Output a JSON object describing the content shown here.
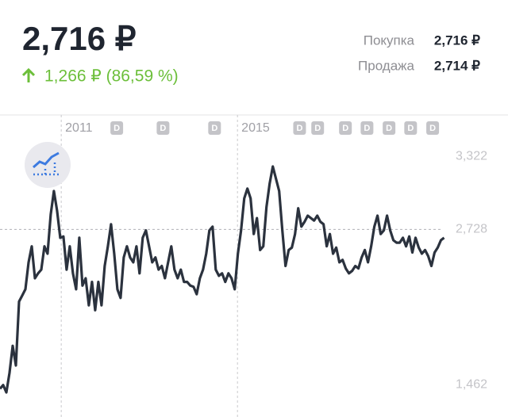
{
  "header": {
    "price": "2,716 ₽",
    "change": "1,266 ₽ (86,59 %)",
    "buy_label": "Покупка",
    "buy_value": "2,716 ₽",
    "sell_label": "Продажа",
    "sell_value": "2,714 ₽"
  },
  "chart_data": {
    "type": "line",
    "color": "#2b323e",
    "xlim": [
      2009.61,
      2021.14
    ],
    "xticks": [
      2011,
      2015
    ],
    "ylim": [
      1.2,
      3.66
    ],
    "yticks": [
      {
        "value": 3.322,
        "label": "3,322"
      },
      {
        "value": 2.728,
        "label": "2,728"
      },
      {
        "value": 1.462,
        "label": "1,462"
      }
    ],
    "dividend_label": "D",
    "dividends": [
      2012.26,
      2013.31,
      2014.48,
      2016.41,
      2016.82,
      2017.45,
      2017.94,
      2018.44,
      2018.93,
      2019.43
    ],
    "x": [
      2009.61,
      2009.682,
      2009.754,
      2009.826,
      2009.898,
      2009.97,
      2010.042,
      2010.114,
      2010.186,
      2010.258,
      2010.33,
      2010.402,
      2010.474,
      2010.546,
      2010.618,
      2010.69,
      2010.762,
      2010.834,
      2010.906,
      2010.978,
      2011.05,
      2011.122,
      2011.194,
      2011.266,
      2011.338,
      2011.41,
      2011.482,
      2011.554,
      2011.626,
      2011.698,
      2011.77,
      2011.842,
      2011.914,
      2011.986,
      2012.058,
      2012.13,
      2012.202,
      2012.274,
      2012.346,
      2012.418,
      2012.49,
      2012.562,
      2012.634,
      2012.706,
      2012.778,
      2012.85,
      2012.922,
      2012.994,
      2013.066,
      2013.138,
      2013.21,
      2013.282,
      2013.354,
      2013.426,
      2013.498,
      2013.57,
      2013.642,
      2013.714,
      2013.786,
      2013.858,
      2013.93,
      2014.002,
      2014.074,
      2014.146,
      2014.218,
      2014.29,
      2014.362,
      2014.434,
      2014.506,
      2014.578,
      2014.65,
      2014.722,
      2014.794,
      2014.866,
      2014.938,
      2015.01,
      2015.082,
      2015.154,
      2015.226,
      2015.298,
      2015.37,
      2015.442,
      2015.514,
      2015.586,
      2015.658,
      2015.73,
      2015.802,
      2015.874,
      2015.946,
      2016.018,
      2016.09,
      2016.162,
      2016.234,
      2016.306,
      2016.378,
      2016.45,
      2016.522,
      2016.594,
      2016.666,
      2016.738,
      2016.81,
      2016.882,
      2016.954,
      2017.026,
      2017.098,
      2017.17,
      2017.242,
      2017.314,
      2017.386,
      2017.458,
      2017.53,
      2017.602,
      2017.674,
      2017.746,
      2017.818,
      2017.89,
      2017.962,
      2018.034,
      2018.106,
      2018.178,
      2018.25,
      2018.322,
      2018.394,
      2018.466,
      2018.538,
      2018.61,
      2018.682,
      2018.754,
      2018.826,
      2018.898,
      2018.97,
      2019.042,
      2019.114,
      2019.186,
      2019.258,
      2019.33,
      2019.402,
      2019.474,
      2019.546,
      2019.618,
      2019.69
    ],
    "values": [
      1.43,
      1.46,
      1.4,
      1.56,
      1.78,
      1.62,
      2.14,
      2.19,
      2.24,
      2.46,
      2.59,
      2.33,
      2.37,
      2.4,
      2.59,
      2.53,
      2.85,
      3.04,
      2.88,
      2.66,
      2.67,
      2.4,
      2.59,
      2.37,
      2.24,
      2.66,
      2.27,
      2.33,
      2.11,
      2.3,
      2.07,
      2.3,
      2.11,
      2.43,
      2.59,
      2.77,
      2.53,
      2.24,
      2.17,
      2.5,
      2.59,
      2.5,
      2.46,
      2.59,
      2.37,
      2.66,
      2.72,
      2.59,
      2.46,
      2.5,
      2.4,
      2.43,
      2.33,
      2.46,
      2.59,
      2.4,
      2.33,
      2.4,
      2.3,
      2.3,
      2.27,
      2.26,
      2.2,
      2.33,
      2.4,
      2.53,
      2.72,
      2.75,
      2.4,
      2.35,
      2.37,
      2.3,
      2.37,
      2.33,
      2.24,
      2.53,
      2.72,
      2.98,
      3.06,
      2.98,
      2.69,
      2.82,
      2.56,
      2.59,
      2.91,
      3.1,
      3.24,
      3.14,
      3.04,
      2.72,
      2.43,
      2.56,
      2.58,
      2.69,
      2.9,
      2.75,
      2.79,
      2.84,
      2.82,
      2.8,
      2.84,
      2.79,
      2.77,
      2.59,
      2.69,
      2.53,
      2.58,
      2.46,
      2.48,
      2.41,
      2.37,
      2.39,
      2.43,
      2.41,
      2.5,
      2.56,
      2.46,
      2.59,
      2.75,
      2.84,
      2.69,
      2.72,
      2.84,
      2.72,
      2.64,
      2.62,
      2.62,
      2.66,
      2.59,
      2.67,
      2.54,
      2.66,
      2.58,
      2.53,
      2.56,
      2.51,
      2.43,
      2.54,
      2.58,
      2.64,
      2.66
    ]
  }
}
